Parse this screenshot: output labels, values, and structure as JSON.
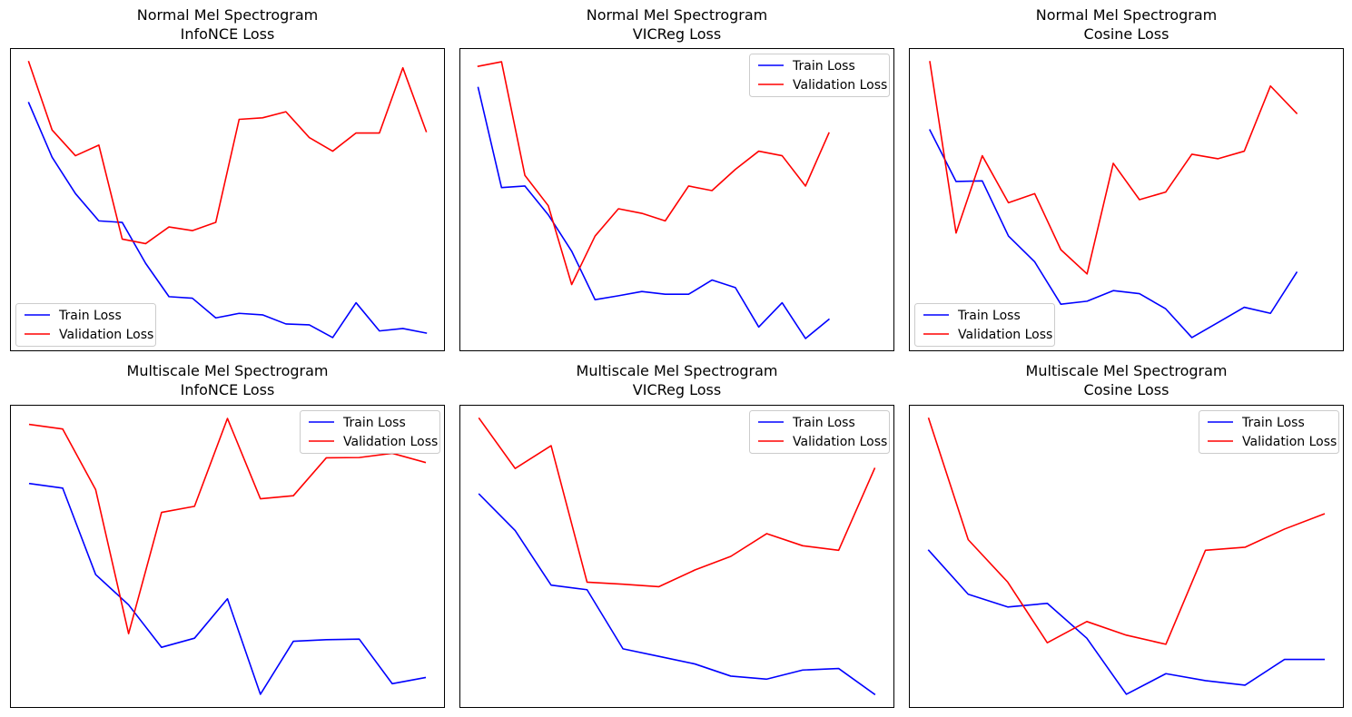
{
  "chart_data": [
    {
      "type": "line",
      "title": [
        "Normal Mel Spectrogram",
        "InfoNCE Loss"
      ],
      "legend": "lower-left",
      "grid": false,
      "xlim": [
        -0.8,
        17.8
      ],
      "ylim": [
        0.0,
        1.0
      ],
      "series": [
        {
          "name": "Train Loss",
          "color": "#0000ff",
          "values": [
            0.82,
            0.64,
            0.52,
            0.43,
            0.425,
            0.29,
            0.18,
            0.175,
            0.11,
            0.125,
            0.12,
            0.09,
            0.087,
            0.045,
            0.16,
            0.067,
            0.075,
            0.06
          ]
        },
        {
          "name": "Validation Loss",
          "color": "#ff0000",
          "values": [
            0.955,
            0.73,
            0.645,
            0.68,
            0.37,
            0.355,
            0.41,
            0.398,
            0.425,
            0.765,
            0.77,
            0.79,
            0.705,
            0.66,
            0.72,
            0.72,
            0.935,
            0.725
          ]
        }
      ]
    },
    {
      "type": "line",
      "title": [
        "Normal Mel Spectrogram",
        "VICReg Loss"
      ],
      "legend": "upper-right",
      "grid": false,
      "xlim": [
        -0.8,
        17.8
      ],
      "ylim": [
        0.0,
        1.0
      ],
      "series": [
        {
          "name": "Train Loss",
          "color": "#0000ff",
          "values": [
            0.87,
            0.54,
            0.545,
            0.45,
            0.33,
            0.17,
            0.183,
            0.197,
            0.188,
            0.188,
            0.235,
            0.21,
            0.08,
            0.16,
            0.042,
            0.105
          ]
        },
        {
          "name": "Validation Loss",
          "color": "#ff0000",
          "values": [
            0.94,
            0.955,
            0.58,
            0.48,
            0.22,
            0.38,
            0.47,
            0.455,
            0.43,
            0.545,
            0.53,
            0.6,
            0.66,
            0.645,
            0.545,
            0.72
          ]
        }
      ]
    },
    {
      "type": "line",
      "title": [
        "Normal Mel Spectrogram",
        "Cosine Loss"
      ],
      "legend": "lower-left",
      "grid": false,
      "xlim": [
        -0.8,
        15.8
      ],
      "ylim": [
        0.0,
        1.0
      ],
      "series": [
        {
          "name": "Train Loss",
          "color": "#0000ff",
          "values": [
            0.73,
            0.56,
            0.562,
            0.38,
            0.295,
            0.155,
            0.165,
            0.2,
            0.19,
            0.14,
            0.045,
            0.095,
            0.145,
            0.125,
            0.26
          ]
        },
        {
          "name": "Validation Loss",
          "color": "#ff0000",
          "values": [
            0.955,
            0.39,
            0.645,
            0.49,
            0.52,
            0.335,
            0.255,
            0.62,
            0.5,
            0.525,
            0.65,
            0.635,
            0.66,
            0.875,
            0.785
          ]
        }
      ]
    },
    {
      "type": "line",
      "title": [
        "Multiscale Mel Spectrogram",
        "InfoNCE Loss"
      ],
      "legend": "upper-right",
      "grid": false,
      "xlim": [
        -0.6,
        12.6
      ],
      "ylim": [
        0.0,
        1.0
      ],
      "series": [
        {
          "name": "Train Loss",
          "color": "#0000ff",
          "values": [
            0.74,
            0.725,
            0.44,
            0.34,
            0.2,
            0.23,
            0.36,
            0.045,
            0.22,
            0.225,
            0.227,
            0.08,
            0.1
          ]
        },
        {
          "name": "Validation Loss",
          "color": "#ff0000",
          "values": [
            0.935,
            0.92,
            0.72,
            0.245,
            0.645,
            0.665,
            0.955,
            0.69,
            0.7,
            0.825,
            0.826,
            0.84,
            0.81
          ]
        }
      ]
    },
    {
      "type": "line",
      "title": [
        "Multiscale Mel Spectrogram",
        "VICReg Loss"
      ],
      "legend": "upper-right",
      "grid": false,
      "xlim": [
        -0.55,
        11.55
      ],
      "ylim": [
        0.0,
        1.0
      ],
      "series": [
        {
          "name": "Train Loss",
          "color": "#0000ff",
          "values": [
            0.705,
            0.585,
            0.405,
            0.39,
            0.195,
            0.17,
            0.145,
            0.105,
            0.095,
            0.125,
            0.13,
            0.045
          ]
        },
        {
          "name": "Validation Loss",
          "color": "#ff0000",
          "values": [
            0.955,
            0.79,
            0.865,
            0.415,
            0.408,
            0.4,
            0.455,
            0.5,
            0.575,
            0.535,
            0.52,
            0.79
          ]
        }
      ]
    },
    {
      "type": "line",
      "title": [
        "Multiscale Mel Spectrogram",
        "Cosine Loss"
      ],
      "legend": "upper-right",
      "grid": false,
      "xlim": [
        -0.5,
        10.5
      ],
      "ylim": [
        0.0,
        1.0
      ],
      "series": [
        {
          "name": "Train Loss",
          "color": "#0000ff",
          "values": [
            0.52,
            0.375,
            0.333,
            0.345,
            0.23,
            0.045,
            0.113,
            0.09,
            0.075,
            0.16,
            0.16
          ]
        },
        {
          "name": "Validation Loss",
          "color": "#ff0000",
          "values": [
            0.955,
            0.555,
            0.415,
            0.215,
            0.285,
            0.24,
            0.21,
            0.52,
            0.53,
            0.59,
            0.64
          ]
        }
      ]
    }
  ]
}
